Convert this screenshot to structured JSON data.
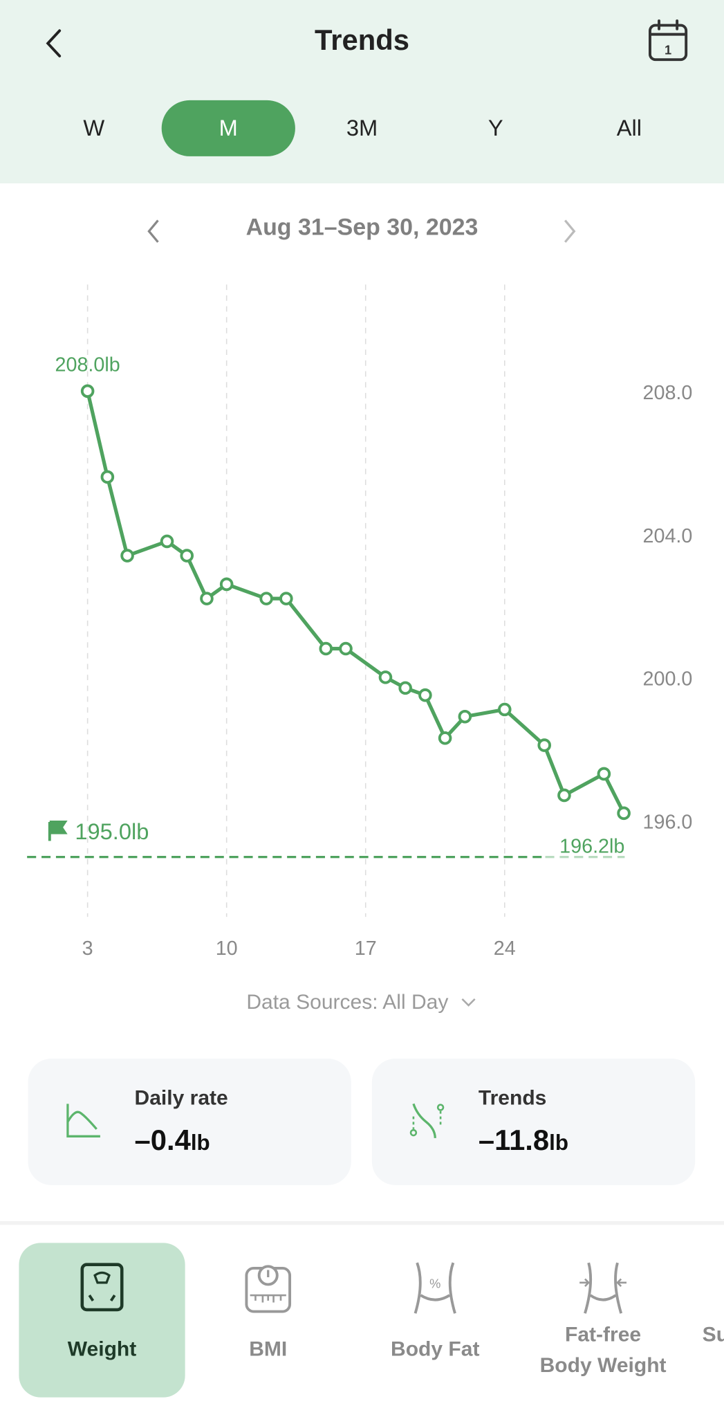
{
  "header": {
    "title": "Trends",
    "back_icon": "chevron-left-icon",
    "calendar_icon": "calendar-icon",
    "calendar_day": "1"
  },
  "periods": [
    {
      "label": "W",
      "active": false
    },
    {
      "label": "M",
      "active": true
    },
    {
      "label": "3M",
      "active": false
    },
    {
      "label": "Y",
      "active": false
    },
    {
      "label": "All",
      "active": false
    }
  ],
  "date_range": "Aug 31–Sep 30, 2023",
  "colors": {
    "accent": "#4fa35f",
    "header_bg": "#e9f4ee",
    "active_tab_bg": "#c4e3cf"
  },
  "chart_data": {
    "type": "line",
    "title": "",
    "xlabel": "",
    "ylabel": "",
    "x_ticks": [
      3,
      10,
      17,
      24
    ],
    "y_ticks": [
      208,
      204,
      200,
      196
    ],
    "y_tick_labels": [
      "208.0",
      "204.0",
      "200.0",
      "196.0"
    ],
    "ylim": [
      193.5,
      210.5
    ],
    "xlim": [
      1,
      31
    ],
    "series": [
      {
        "name": "Weight",
        "unit": "lb",
        "x": [
          3,
          4,
          5,
          7,
          8,
          9,
          10,
          12,
          13,
          15,
          16,
          18,
          19,
          20,
          21,
          22,
          24,
          26,
          27,
          29,
          30
        ],
        "y": [
          208.0,
          205.6,
          203.4,
          203.8,
          203.4,
          202.2,
          202.6,
          202.2,
          202.2,
          200.8,
          200.8,
          200.0,
          199.7,
          199.5,
          198.3,
          198.9,
          199.1,
          198.1,
          196.7,
          197.3,
          196.2
        ]
      }
    ],
    "annotations": {
      "max_label": "208.0lb",
      "last_label": "196.2lb",
      "goal_label": "195.0lb",
      "goal_value": 195.0
    },
    "grid": "vertical-dashed"
  },
  "data_sources": "Data Sources: All Day",
  "cards": [
    {
      "label": "Daily rate",
      "value": "–0.4",
      "unit": "lb"
    },
    {
      "label": "Trends",
      "value": "–11.8",
      "unit": "lb"
    }
  ],
  "tabs": [
    {
      "label": "Weight",
      "active": true
    },
    {
      "label": "BMI"
    },
    {
      "label": "Body Fat"
    },
    {
      "label": "Fat-free",
      "label2": "Body Weight"
    },
    {
      "label": "Su"
    }
  ]
}
